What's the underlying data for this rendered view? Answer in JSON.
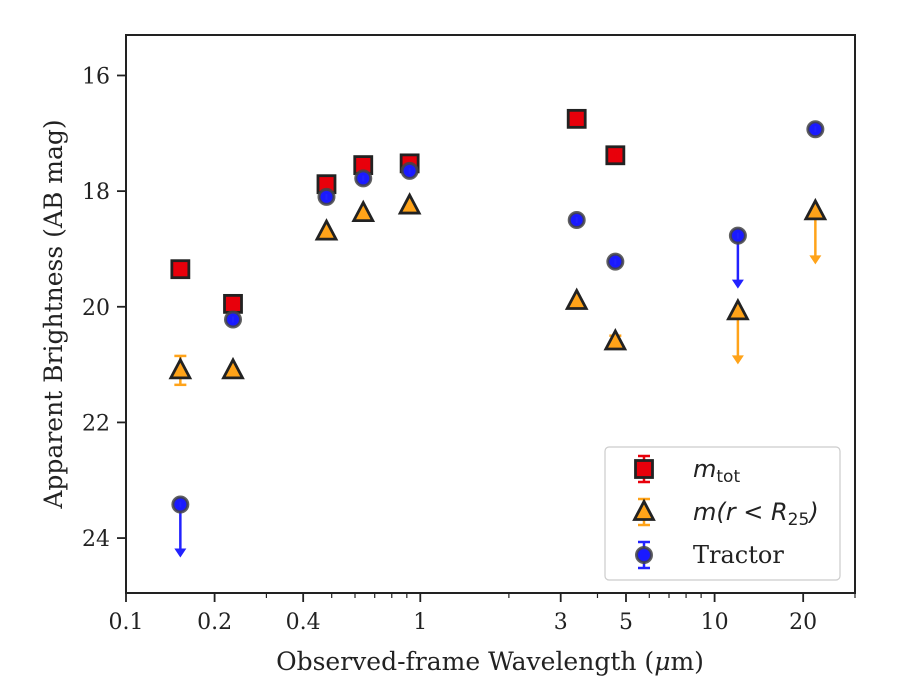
{
  "chart_data": {
    "type": "scatter",
    "xlabel_prefix": "Observed-frame Wavelength (",
    "xlabel_unit": "μ",
    "xlabel_suffix": "m)",
    "ylabel": "Apparent Brightness (AB mag)",
    "xscale": "log",
    "xlim": [
      0.1,
      30
    ],
    "ylim": [
      24.95,
      15.3
    ],
    "y_inverted": true,
    "grid": false,
    "legend_position": "lower-right",
    "x_ticks": [
      {
        "value": 0.1,
        "label": "0.1"
      },
      {
        "value": 0.2,
        "label": "0.2"
      },
      {
        "value": 0.4,
        "label": "0.4"
      },
      {
        "value": 1,
        "label": "1"
      },
      {
        "value": 3,
        "label": "3"
      },
      {
        "value": 5,
        "label": "5"
      },
      {
        "value": 10,
        "label": "10"
      },
      {
        "value": 20,
        "label": "20"
      }
    ],
    "x_minor_ticks": [
      0.3,
      0.5,
      0.6,
      0.7,
      0.8,
      0.9,
      2,
      4,
      6,
      7,
      8,
      9,
      30
    ],
    "y_ticks": [
      {
        "value": 16,
        "label": "16"
      },
      {
        "value": 18,
        "label": "18"
      },
      {
        "value": 20,
        "label": "20"
      },
      {
        "value": 22,
        "label": "22"
      },
      {
        "value": 24,
        "label": "24"
      }
    ],
    "series": [
      {
        "name": "m_tot",
        "marker": "square",
        "color": "#e8000b",
        "errcolor": "#e8000b",
        "points": [
          {
            "x": 0.153,
            "y": 19.35
          },
          {
            "x": 0.231,
            "y": 19.95
          },
          {
            "x": 0.48,
            "y": 17.88
          },
          {
            "x": 0.64,
            "y": 17.55
          },
          {
            "x": 0.92,
            "y": 17.52
          },
          {
            "x": 3.4,
            "y": 16.75
          },
          {
            "x": 4.6,
            "y": 17.38
          }
        ]
      },
      {
        "name": "m(r<R25)",
        "marker": "triangle",
        "color": "#ffa319",
        "errcolor": "#ffa319",
        "points": [
          {
            "x": 0.153,
            "y": 21.1,
            "err": 0.25
          },
          {
            "x": 0.231,
            "y": 21.1
          },
          {
            "x": 0.48,
            "y": 18.7
          },
          {
            "x": 0.64,
            "y": 18.38
          },
          {
            "x": 0.92,
            "y": 18.25
          },
          {
            "x": 3.4,
            "y": 19.9
          },
          {
            "x": 4.6,
            "y": 20.6,
            "err": 0.1
          },
          {
            "x": 12.0,
            "y": 20.08,
            "upper_limit": true
          },
          {
            "x": 22.0,
            "y": 18.35,
            "upper_limit": true
          }
        ]
      },
      {
        "name": "Tractor",
        "marker": "circle",
        "color": "#1a1aff",
        "errcolor": "#2222ff",
        "points": [
          {
            "x": 0.153,
            "y": 23.42,
            "upper_limit": true
          },
          {
            "x": 0.231,
            "y": 20.22
          },
          {
            "x": 0.48,
            "y": 18.1
          },
          {
            "x": 0.64,
            "y": 17.78
          },
          {
            "x": 0.92,
            "y": 17.65
          },
          {
            "x": 3.4,
            "y": 18.5
          },
          {
            "x": 4.6,
            "y": 19.22
          },
          {
            "x": 12.0,
            "y": 18.77,
            "upper_limit": true
          },
          {
            "x": 22.0,
            "y": 16.93
          }
        ]
      }
    ],
    "legend": [
      {
        "series": 0,
        "base": "m",
        "sub": "tot",
        "rest": ""
      },
      {
        "series": 1,
        "base": "m",
        "sub": "",
        "rest": "(r < R",
        "rest_sub": "25",
        "rest_end": ")"
      },
      {
        "series": 2,
        "text": "Tractor"
      }
    ]
  }
}
